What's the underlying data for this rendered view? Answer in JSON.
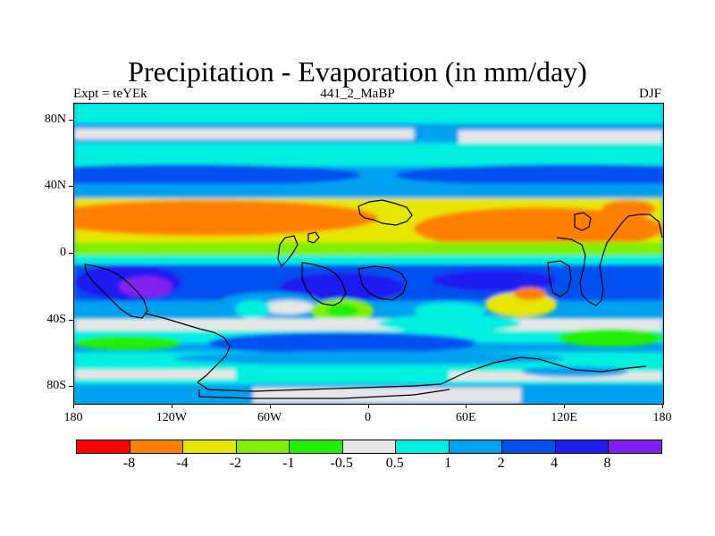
{
  "title": "Precipitation - Evaporation (in mm/day)",
  "subtitle_left": "Expt = teYEk",
  "subtitle_center": "441_2_MaBP",
  "subtitle_right": "DJF",
  "map": {
    "lon_range": [
      -180,
      180
    ],
    "lat_range": [
      -90,
      90
    ],
    "lat_ticks": [
      {
        "value": 80,
        "label": "80N"
      },
      {
        "value": 40,
        "label": "40N"
      },
      {
        "value": 0,
        "label": "0"
      },
      {
        "value": -40,
        "label": "40S"
      },
      {
        "value": -80,
        "label": "80S"
      }
    ],
    "lon_ticks": [
      {
        "value": -180,
        "label": "180"
      },
      {
        "value": -120,
        "label": "120W"
      },
      {
        "value": -60,
        "label": "60W"
      },
      {
        "value": 0,
        "label": "0"
      },
      {
        "value": 60,
        "label": "60E"
      },
      {
        "value": 120,
        "label": "120E"
      },
      {
        "value": 180,
        "label": "180"
      }
    ]
  },
  "colorbar": {
    "colors": [
      "#ff0000",
      "#ff8000",
      "#e6e600",
      "#80f000",
      "#20f000",
      "#e6e6e6",
      "#00f0e0",
      "#00a0f0",
      "#0050f0",
      "#1e1ef0",
      "#8020f0"
    ],
    "labels": [
      "-8",
      "-4",
      "-2",
      "-1",
      "-0.5",
      "0.5",
      "1",
      "2",
      "4",
      "8"
    ]
  }
}
